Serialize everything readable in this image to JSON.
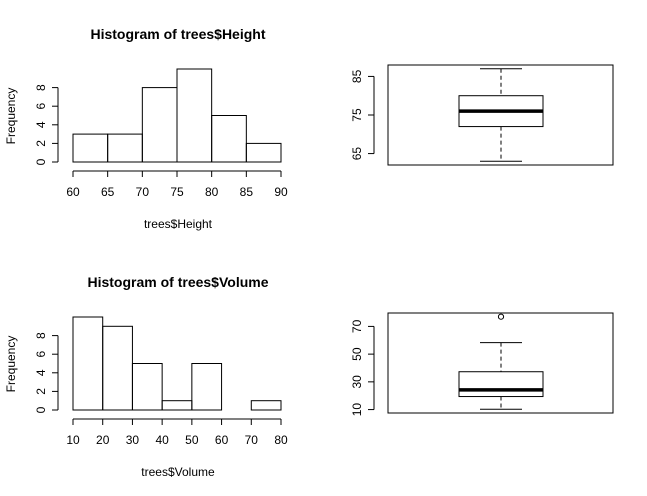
{
  "chart_data": [
    {
      "type": "bar",
      "title": "Histogram of trees$Height",
      "xlabel": "trees$Height",
      "ylabel": "Frequency",
      "bins": [
        [
          60,
          65
        ],
        [
          65,
          70
        ],
        [
          70,
          75
        ],
        [
          75,
          80
        ],
        [
          80,
          85
        ],
        [
          85,
          90
        ]
      ],
      "values": [
        3,
        3,
        8,
        10,
        5,
        2
      ],
      "xticks": [
        "60",
        "65",
        "70",
        "75",
        "80",
        "85",
        "90"
      ],
      "yticks": [
        "0",
        "2",
        "4",
        "6",
        "8"
      ],
      "xlim": [
        60,
        90
      ],
      "ylim": [
        0,
        10
      ]
    },
    {
      "type": "box",
      "title": "",
      "ylabel": "",
      "whisker_low": 63,
      "q1": 72,
      "median": 76,
      "q3": 80,
      "whisker_high": 87,
      "outliers": [],
      "yticks": [
        "65",
        "75",
        "85"
      ],
      "ylim": [
        62.04,
        87.96
      ]
    },
    {
      "type": "bar",
      "title": "Histogram of trees$Volume",
      "xlabel": "trees$Volume",
      "ylabel": "Frequency",
      "bins": [
        [
          10,
          20
        ],
        [
          20,
          30
        ],
        [
          30,
          40
        ],
        [
          40,
          50
        ],
        [
          50,
          60
        ],
        [
          60,
          70
        ],
        [
          70,
          80
        ]
      ],
      "values": [
        10,
        9,
        5,
        1,
        5,
        0,
        1
      ],
      "xticks": [
        "10",
        "20",
        "30",
        "40",
        "50",
        "60",
        "70",
        "80"
      ],
      "yticks": [
        "0",
        "2",
        "4",
        "6",
        "8"
      ],
      "xlim": [
        10,
        80
      ],
      "ylim": [
        0,
        10
      ]
    },
    {
      "type": "box",
      "title": "",
      "ylabel": "",
      "whisker_low": 10.2,
      "q1": 19.4,
      "median": 24.2,
      "q3": 37.3,
      "whisker_high": 58.3,
      "outliers": [
        77.0
      ],
      "yticks": [
        "10",
        "30",
        "50",
        "70"
      ],
      "ylim": [
        7.528,
        79.672
      ]
    }
  ]
}
